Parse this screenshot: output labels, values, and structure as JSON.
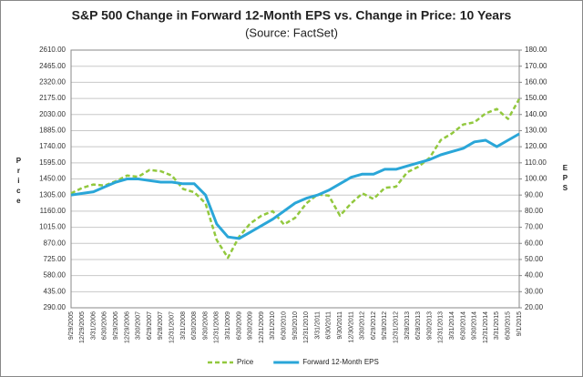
{
  "chart_data": {
    "type": "line",
    "title": "S&P 500 Change in Forward 12-Month EPS vs. Change in Price: 10 Years",
    "subtitle": "(Source: FactSet)",
    "y_label": "Price",
    "y2_label": "EPS",
    "categories": [
      "9/29/2005",
      "12/29/2005",
      "3/31/2006",
      "6/30/2006",
      "9/29/2006",
      "12/29/2006",
      "3/30/2007",
      "6/29/2007",
      "9/28/2007",
      "12/31/2007",
      "3/31/2008",
      "6/30/2008",
      "9/30/2008",
      "12/31/2008",
      "3/31/2009",
      "6/30/2009",
      "9/30/2009",
      "12/31/2009",
      "3/31/2010",
      "6/30/2010",
      "9/30/2010",
      "12/31/2010",
      "3/31/2011",
      "6/30/2011",
      "9/30/2011",
      "12/30/2011",
      "3/30/2012",
      "6/29/2012",
      "9/28/2012",
      "12/31/2012",
      "3/28/2013",
      "6/28/2013",
      "9/30/2013",
      "12/31/2013",
      "3/31/2014",
      "6/30/2014",
      "9/30/2014",
      "12/31/2014",
      "3/31/2015",
      "6/30/2015",
      "9/1/2015"
    ],
    "series": [
      {
        "name": "Price",
        "color": "#92c83e",
        "dash": true,
        "values": [
          1320,
          1370,
          1400,
          1390,
          1430,
          1480,
          1470,
          1530,
          1520,
          1480,
          1360,
          1330,
          1230,
          900,
          740,
          930,
          1050,
          1120,
          1160,
          1040,
          1100,
          1230,
          1310,
          1300,
          1120,
          1230,
          1320,
          1270,
          1370,
          1380,
          1510,
          1560,
          1640,
          1800,
          1860,
          1940,
          1960,
          2040,
          2080,
          1990,
          2170
        ]
      },
      {
        "name": "Forward 12-Month EPS",
        "color": "#2aa6d8",
        "dash": false,
        "axis": "y2",
        "values": [
          90,
          91,
          92,
          95,
          98,
          100,
          100,
          99,
          98,
          98,
          97,
          97,
          90,
          72,
          64,
          63,
          67,
          71,
          75,
          80,
          85,
          88,
          90,
          93,
          97,
          101,
          103,
          103,
          106,
          106,
          108,
          110,
          112,
          115,
          117,
          119,
          123,
          124,
          120,
          124,
          128
        ]
      }
    ],
    "ylim": [
      290,
      2610
    ],
    "yticks": [
      {
        "value": 290,
        "label": "290.00"
      },
      {
        "value": 435,
        "label": "435.00"
      },
      {
        "value": 580,
        "label": "580.00"
      },
      {
        "value": 725,
        "label": "725.00"
      },
      {
        "value": 870,
        "label": "870.00"
      },
      {
        "value": 1015,
        "label": "1015.00"
      },
      {
        "value": 1160,
        "label": "1160.00"
      },
      {
        "value": 1305,
        "label": "1305.00"
      },
      {
        "value": 1450,
        "label": "1450.00"
      },
      {
        "value": 1595,
        "label": "1595.00"
      },
      {
        "value": 1740,
        "label": "1740.00"
      },
      {
        "value": 1885,
        "label": "1885.00"
      },
      {
        "value": 2030,
        "label": "2030.00"
      },
      {
        "value": 2175,
        "label": "2175.00"
      },
      {
        "value": 2320,
        "label": "2320.00"
      },
      {
        "value": 2465,
        "label": "2465.00"
      },
      {
        "value": 2610,
        "label": "2610.00"
      }
    ],
    "y2lim": [
      20,
      180
    ],
    "y2ticks": [
      {
        "value": 20,
        "label": "20.00"
      },
      {
        "value": 30,
        "label": "30.00"
      },
      {
        "value": 40,
        "label": "40.00"
      },
      {
        "value": 50,
        "label": "50.00"
      },
      {
        "value": 60,
        "label": "60.00"
      },
      {
        "value": 70,
        "label": "70.00"
      },
      {
        "value": 80,
        "label": "80.00"
      },
      {
        "value": 90,
        "label": "90.00"
      },
      {
        "value": 100,
        "label": "100.00"
      },
      {
        "value": 110,
        "label": "110.00"
      },
      {
        "value": 120,
        "label": "120.00"
      },
      {
        "value": 130,
        "label": "130.00"
      },
      {
        "value": 140,
        "label": "140.00"
      },
      {
        "value": 150,
        "label": "150.00"
      },
      {
        "value": 160,
        "label": "160.00"
      },
      {
        "value": 170,
        "label": "170.00"
      },
      {
        "value": 180,
        "label": "180.00"
      }
    ],
    "grid": true,
    "legend": "bottom"
  }
}
